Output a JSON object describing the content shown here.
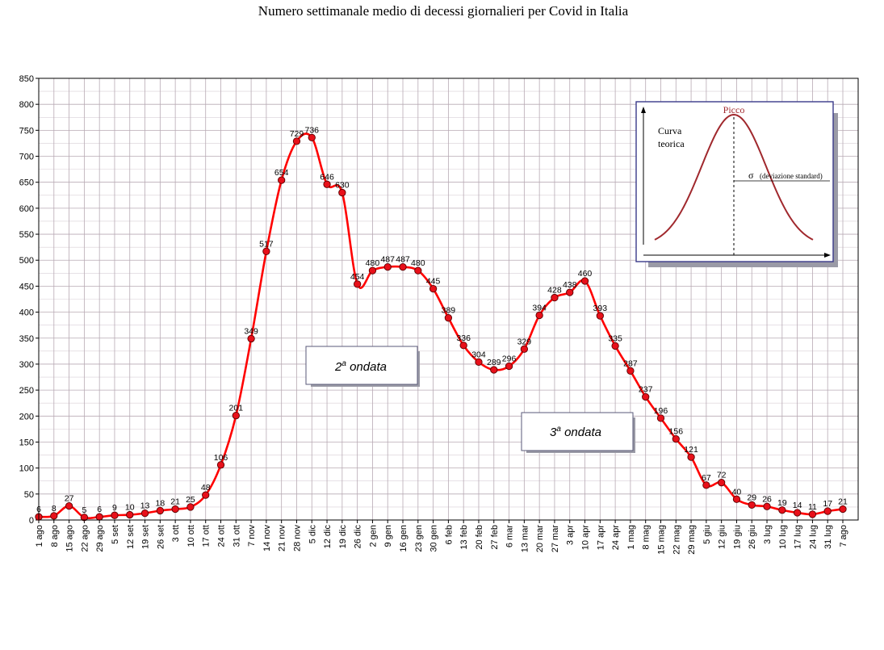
{
  "chart_data": {
    "type": "line",
    "title": "Numero settimanale medio di decessi giornalieri per Covid in Italia",
    "xlabel": "",
    "ylabel": "",
    "ylim": [
      0,
      850
    ],
    "yticks": [
      0,
      50,
      100,
      150,
      200,
      250,
      300,
      350,
      400,
      450,
      500,
      550,
      600,
      650,
      700,
      750,
      800,
      850
    ],
    "grid": true,
    "categories": [
      "1 ago",
      "8 ago",
      "15 ago",
      "22 ago",
      "29 ago",
      "5 set",
      "12 set",
      "19 set",
      "26 set",
      "3 ott",
      "10 ott",
      "17 ott",
      "24 ott",
      "31 ott",
      "7 nov",
      "14 nov",
      "21 nov",
      "28 nov",
      "5 dic",
      "12 dic",
      "19 dic",
      "26 dic",
      "2 gen",
      "9 gen",
      "16 gen",
      "23 gen",
      "30 gen",
      "6 feb",
      "13 feb",
      "20 feb",
      "27 feb",
      "6 mar",
      "13 mar",
      "20 mar",
      "27 mar",
      "3 apr",
      "10 apr",
      "17 apr",
      "24 apr",
      "1 mag",
      "8 mag",
      "15 mag",
      "22 mag",
      "29 mag",
      "5 giu",
      "12 giu",
      "19 giu",
      "26 giu",
      "3 lug",
      "10 lug",
      "17 lug",
      "24 lug",
      "31 lug",
      "7 ago"
    ],
    "series": [
      {
        "name": "",
        "color": "#ff0000",
        "values": [
          6,
          8,
          27,
          5,
          6,
          9,
          10,
          13,
          18,
          21,
          25,
          48,
          106,
          201,
          349,
          517,
          654,
          729,
          736,
          646,
          630,
          454,
          480,
          487,
          487,
          480,
          445,
          389,
          336,
          304,
          289,
          296,
          329,
          394,
          428,
          438,
          460,
          393,
          335,
          287,
          237,
          196,
          156,
          121,
          67,
          72,
          40,
          29,
          26,
          19,
          14,
          11,
          17,
          21
        ]
      }
    ],
    "annotations": [
      {
        "prefix": "2",
        "superscript": "a",
        "text": "ondata"
      },
      {
        "prefix": "3",
        "superscript": "a",
        "text": "ondata"
      }
    ],
    "inset": {
      "peak_label": "Picco",
      "curve_label_line1": "Curva",
      "curve_label_line2": "teorica",
      "sigma_symbol": "σ",
      "sigma_label": "(deviazione standard)",
      "curve_color": "#a0282d"
    }
  }
}
